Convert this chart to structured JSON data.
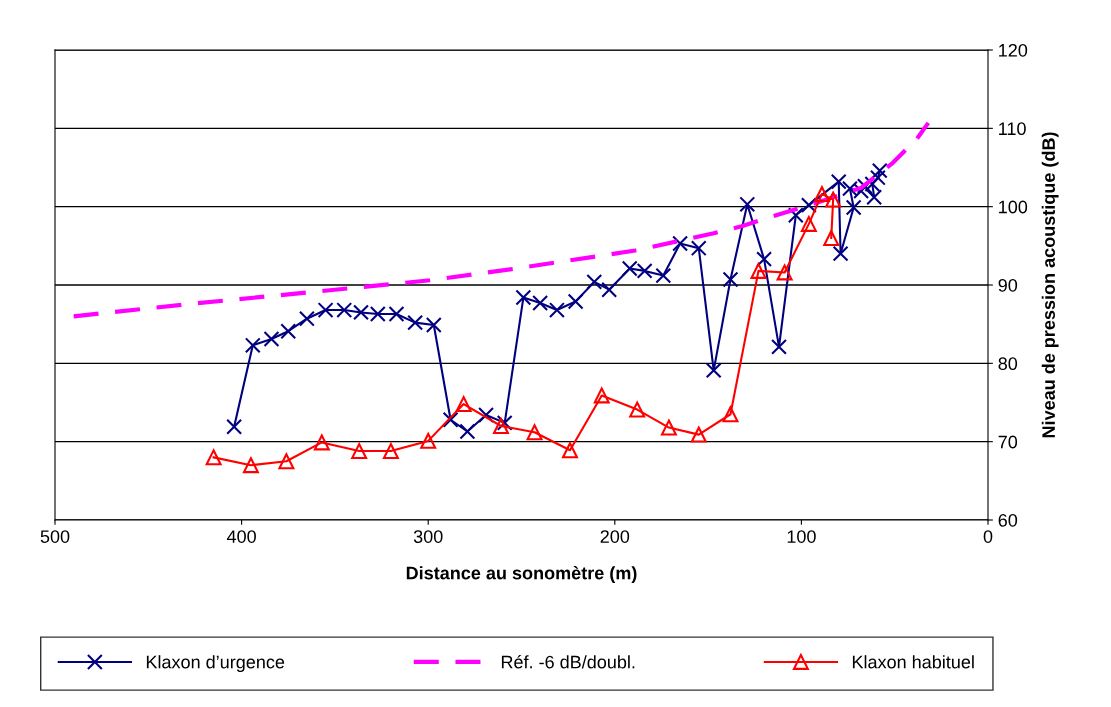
{
  "chart_data": {
    "type": "line",
    "xlabel": "Distance au sonomètre (m)",
    "ylabel": "Niveau de pression acoustique (dB)",
    "xlim": [
      500,
      0
    ],
    "xticks": [
      500,
      400,
      300,
      200,
      100,
      0
    ],
    "ylim": [
      60,
      120
    ],
    "yticks": [
      60,
      70,
      80,
      90,
      100,
      110,
      120
    ],
    "grid": "y",
    "legend": "bottom",
    "series": [
      {
        "name": "Klaxon d’urgence",
        "color": "#000080",
        "marker": "cross",
        "line_style": "solid",
        "x": [
          404,
          394,
          384,
          375,
          365,
          355,
          345,
          336,
          327,
          317,
          307,
          297,
          288,
          279,
          269,
          259,
          249,
          240,
          231,
          221,
          211,
          203,
          192,
          184,
          174,
          165,
          155,
          147,
          138,
          129,
          120,
          112,
          103,
          96,
          80,
          79,
          72,
          74,
          68,
          66,
          61,
          62,
          59,
          58
        ],
        "values": [
          71.9,
          82.3,
          83.1,
          84.1,
          85.7,
          86.8,
          86.8,
          86.5,
          86.3,
          86.3,
          85.2,
          84.9,
          72.8,
          71.3,
          73.4,
          72.4,
          88.4,
          87.7,
          86.8,
          87.9,
          90.4,
          89.4,
          92.1,
          91.8,
          91.2,
          95.3,
          94.7,
          79.1,
          90.7,
          100.3,
          93.3,
          82.1,
          98.9,
          100.2,
          103.2,
          94.0,
          99.9,
          102.3,
          102.0,
          102.6,
          101.2,
          102.9,
          103.7,
          104.6
        ]
      },
      {
        "name": "Réf. -6 dB/doubl.",
        "color": "#ff00ff",
        "marker": "none",
        "line_style": "dashed",
        "x": [
          490,
          427,
          358,
          299,
          256,
          189,
          147,
          132,
          115,
          93,
          68,
          51,
          38,
          32
        ],
        "values": [
          86.0,
          87.6,
          89.2,
          90.6,
          92.0,
          94.4,
          96.6,
          97.5,
          98.8,
          100.4,
          102.4,
          105.6,
          108.7,
          110.7
        ]
      },
      {
        "name": "Klaxon habituel",
        "color": "#ff0000",
        "marker": "triangle",
        "line_style": "solid",
        "x": [
          415,
          395,
          376,
          357,
          337,
          320,
          300,
          281,
          261,
          243,
          224,
          207,
          188,
          171,
          155,
          138,
          123,
          109,
          96,
          89,
          83,
          84
        ],
        "values": [
          68.0,
          67.0,
          67.5,
          69.9,
          68.8,
          68.8,
          70.1,
          74.8,
          72.0,
          71.2,
          68.9,
          75.9,
          74.1,
          71.8,
          70.9,
          73.5,
          91.8,
          91.6,
          97.8,
          101.6,
          100.9,
          96.0
        ]
      }
    ]
  }
}
